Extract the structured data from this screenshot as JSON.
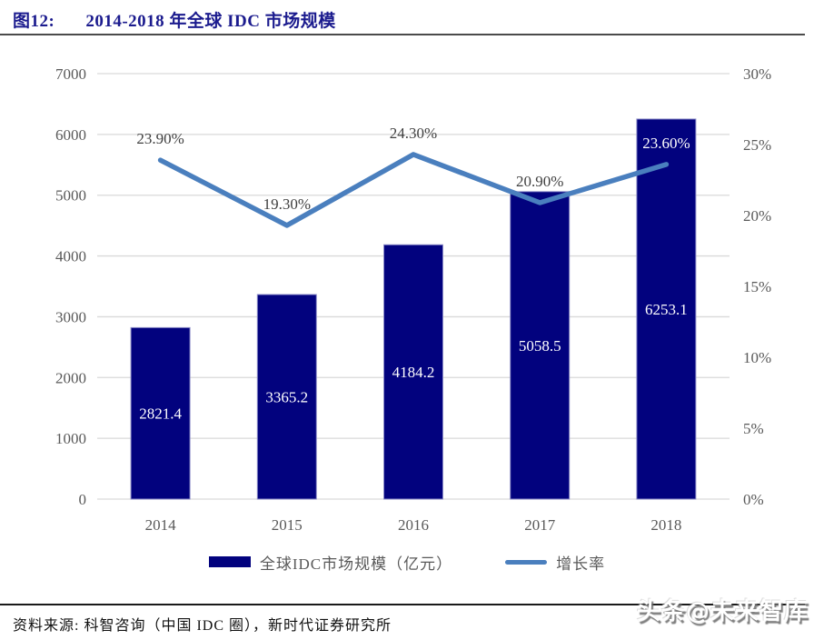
{
  "header": {
    "figure_label": "图12:",
    "title": "2014-2018 年全球 IDC 市场规模"
  },
  "chart_data": {
    "type": "combo",
    "categories": [
      "2014",
      "2015",
      "2016",
      "2017",
      "2018"
    ],
    "series": [
      {
        "name": "全球IDC市场规模（亿元）",
        "type": "bar",
        "axis": "left",
        "values": [
          2821.4,
          3365.2,
          4184.2,
          5058.5,
          6253.1
        ],
        "labels": [
          "2821.4",
          "3365.2",
          "4184.2",
          "5058.5",
          "6253.1"
        ],
        "color": "#02027e",
        "border_color": "#8c8cc8",
        "label_color": "#ffffff"
      },
      {
        "name": "增长率",
        "type": "line",
        "axis": "right",
        "values": [
          23.9,
          19.3,
          24.3,
          20.9,
          23.6
        ],
        "labels": [
          "23.90%",
          "19.30%",
          "24.30%",
          "20.90%",
          "23.60%"
        ],
        "color": "#4a7fbe",
        "label_colors": [
          "#3f3f3f",
          "#3f3f3f",
          "#3f3f3f",
          "#3f3f3f",
          "#ffffff"
        ]
      }
    ],
    "left_axis": {
      "min": 0,
      "max": 7000,
      "step": 1000,
      "tick_labels": [
        "0",
        "1000",
        "2000",
        "3000",
        "4000",
        "5000",
        "6000",
        "7000"
      ]
    },
    "right_axis": {
      "min": 0,
      "max": 30,
      "step": 5,
      "tick_labels": [
        "0%",
        "5%",
        "10%",
        "15%",
        "20%",
        "25%",
        "30%"
      ]
    },
    "grid_on": true,
    "grid_color": "#d9d9d9",
    "axis_text_color": "#595959",
    "legend_position": "bottom"
  },
  "colors": {
    "title": "#1b1b8e",
    "bar": "#02027e",
    "line": "#4a7fbe"
  },
  "footer": {
    "source": "资料来源:  科智咨询（中国 IDC 圈），新时代证券研究所"
  },
  "watermark": {
    "text": "头条@未来智库"
  }
}
